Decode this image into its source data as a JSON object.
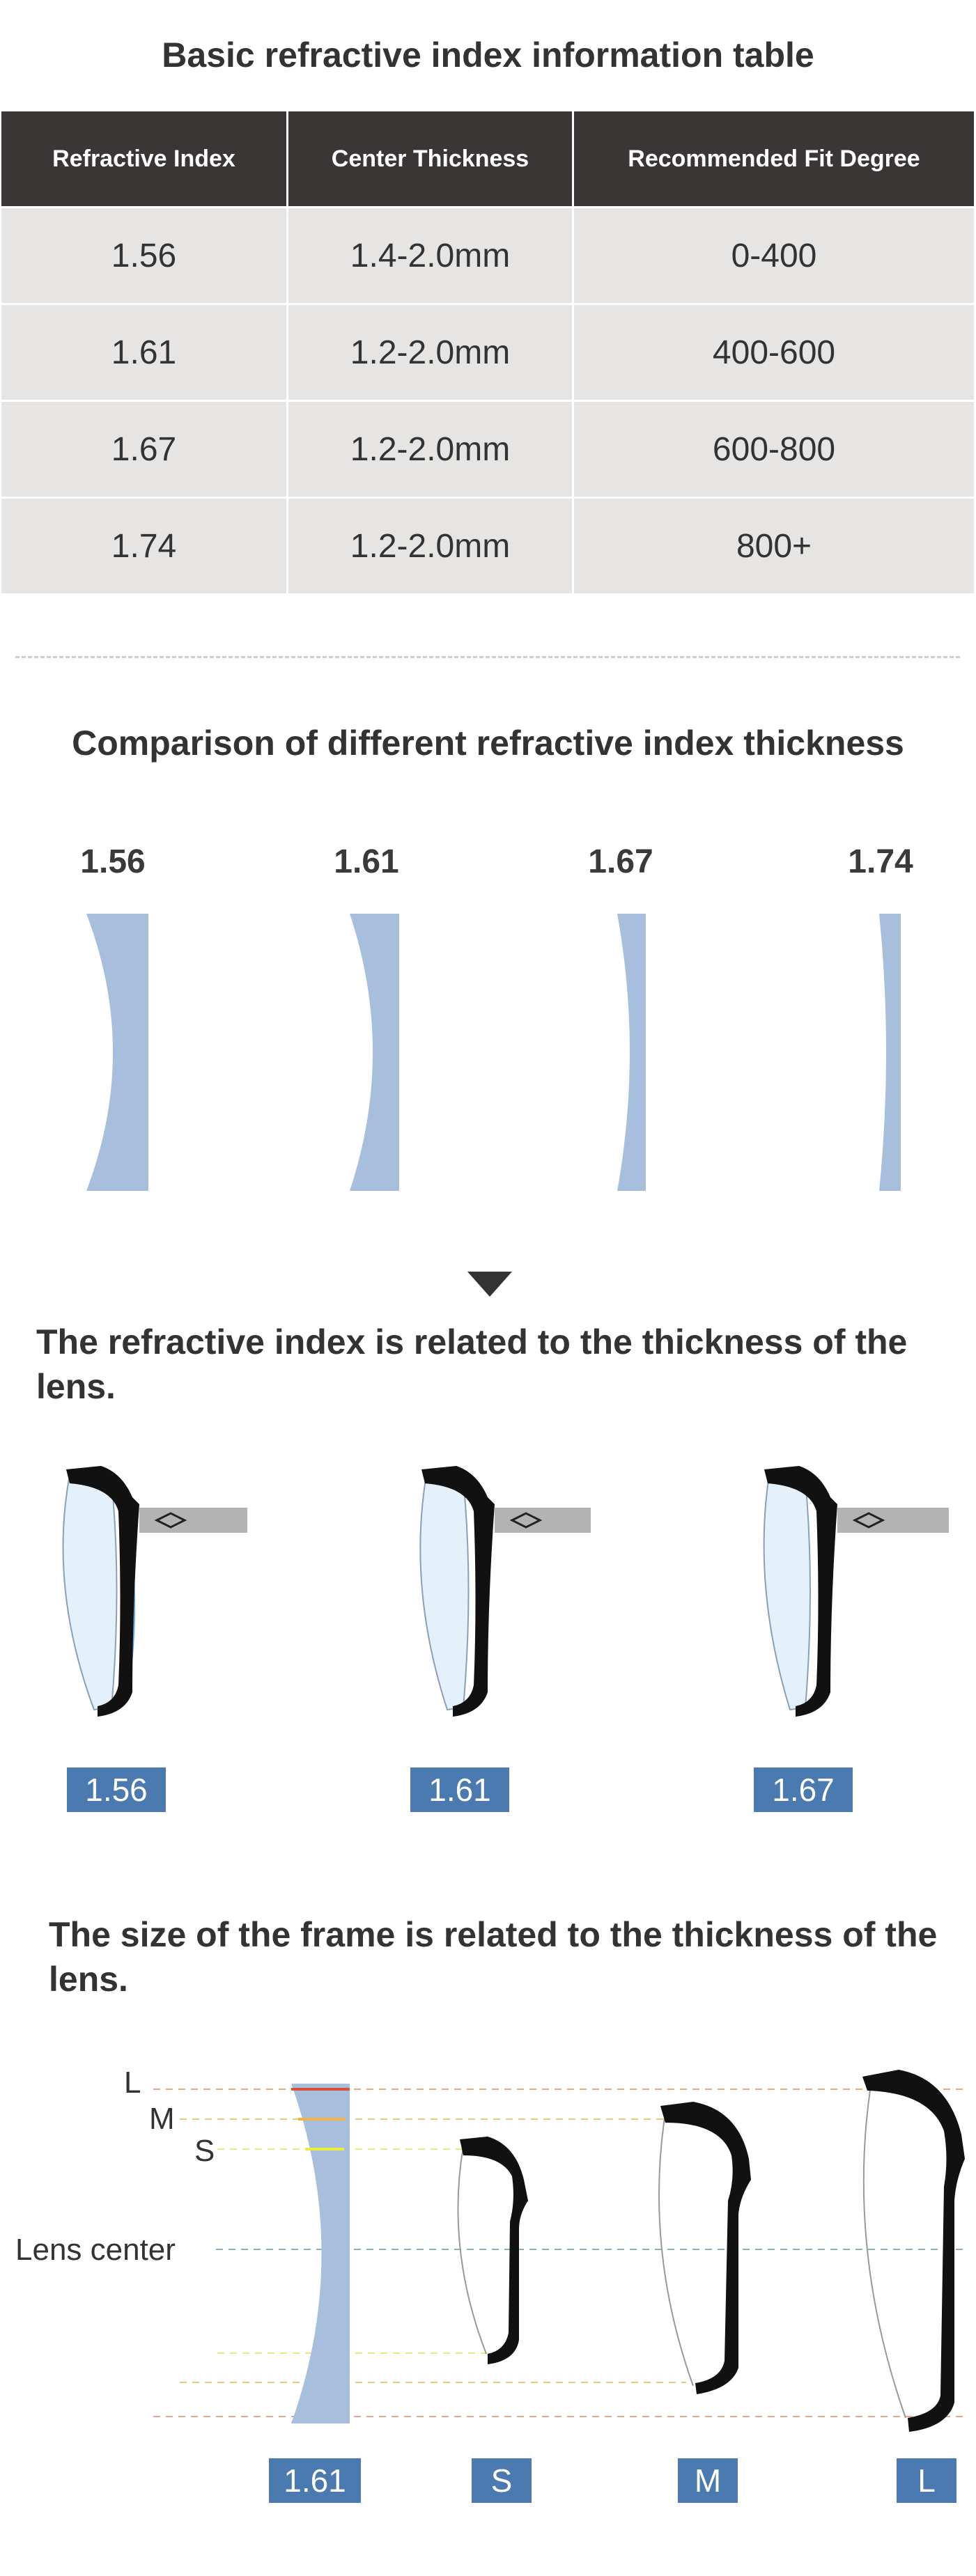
{
  "section1": {
    "title": "Basic refractive index information table",
    "headers": [
      "Refractive Index",
      "Center Thickness",
      "Recommended Fit Degree"
    ],
    "rows": [
      [
        "1.56",
        "1.4-2.0mm",
        "0-400"
      ],
      [
        "1.61",
        "1.2-2.0mm",
        "400-600"
      ],
      [
        "1.67",
        "1.2-2.0mm",
        "600-800"
      ],
      [
        "1.74",
        "1.2-2.0mm",
        "800+"
      ]
    ]
  },
  "section2": {
    "title": "Comparison of different refractive index thickness",
    "lenses": [
      {
        "label": "1.56"
      },
      {
        "label": "1.61"
      },
      {
        "label": "1.67"
      },
      {
        "label": "1.74"
      }
    ],
    "lens_color": "#a7bfdd"
  },
  "section3": {
    "title": "The refractive index is related to the thickness of the lens.",
    "badges": [
      "1.56",
      "1.61",
      "1.67"
    ],
    "badge_color": "#4a7aaf"
  },
  "section4": {
    "title": "The size of the frame is related to the thickness of the lens.",
    "level_labels": {
      "L": "L",
      "M": "M",
      "S": "S",
      "center": "Lens center"
    },
    "badges": [
      "1.61",
      "S",
      "M",
      "L"
    ]
  }
}
